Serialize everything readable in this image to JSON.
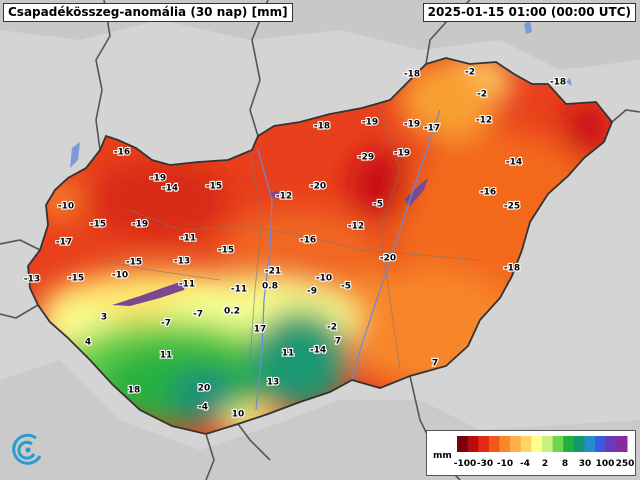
{
  "title": "Csapadékösszeg-anomália (30 nap) [mm]",
  "timestamp": "2025-01-15 01:00 (00:00 UTC)",
  "legend": {
    "unit": "mm",
    "colors": [
      "#7a0010",
      "#b80c0c",
      "#e02a16",
      "#f0581e",
      "#f8862a",
      "#ffb04a",
      "#ffd46a",
      "#ffff90",
      "#c8f07a",
      "#6fd44e",
      "#1fb040",
      "#12986a",
      "#2a8ad0",
      "#3a5ae0",
      "#6a3ab8",
      "#8a2aa0"
    ],
    "tick_labels": [
      "-100",
      "-30",
      "-10",
      "-4",
      "2",
      "8",
      "30",
      "100",
      "250"
    ]
  },
  "values": [
    "-18",
    "-2",
    "-18",
    "-2",
    "-12",
    "-18",
    "-19",
    "-19",
    "-17",
    "-29",
    "-19",
    "-16",
    "-14",
    "-19",
    "-14",
    "-15",
    "-20",
    "-16",
    "-12",
    "-25",
    "-5",
    "-10",
    "-15",
    "-19",
    "-11",
    "-15",
    "-16",
    "-12",
    "-17",
    "-20",
    "-15",
    "-13",
    "-18",
    "-21",
    "-13",
    "-15",
    "-10",
    "-11",
    "-11",
    "0.8",
    "-10",
    "-5",
    "-9",
    "3",
    "-7",
    "-7",
    "0.2",
    "17",
    "-2",
    "4",
    "7",
    "11",
    "11",
    "-14",
    "7",
    "18",
    "20",
    "13",
    "-4",
    "10"
  ]
}
